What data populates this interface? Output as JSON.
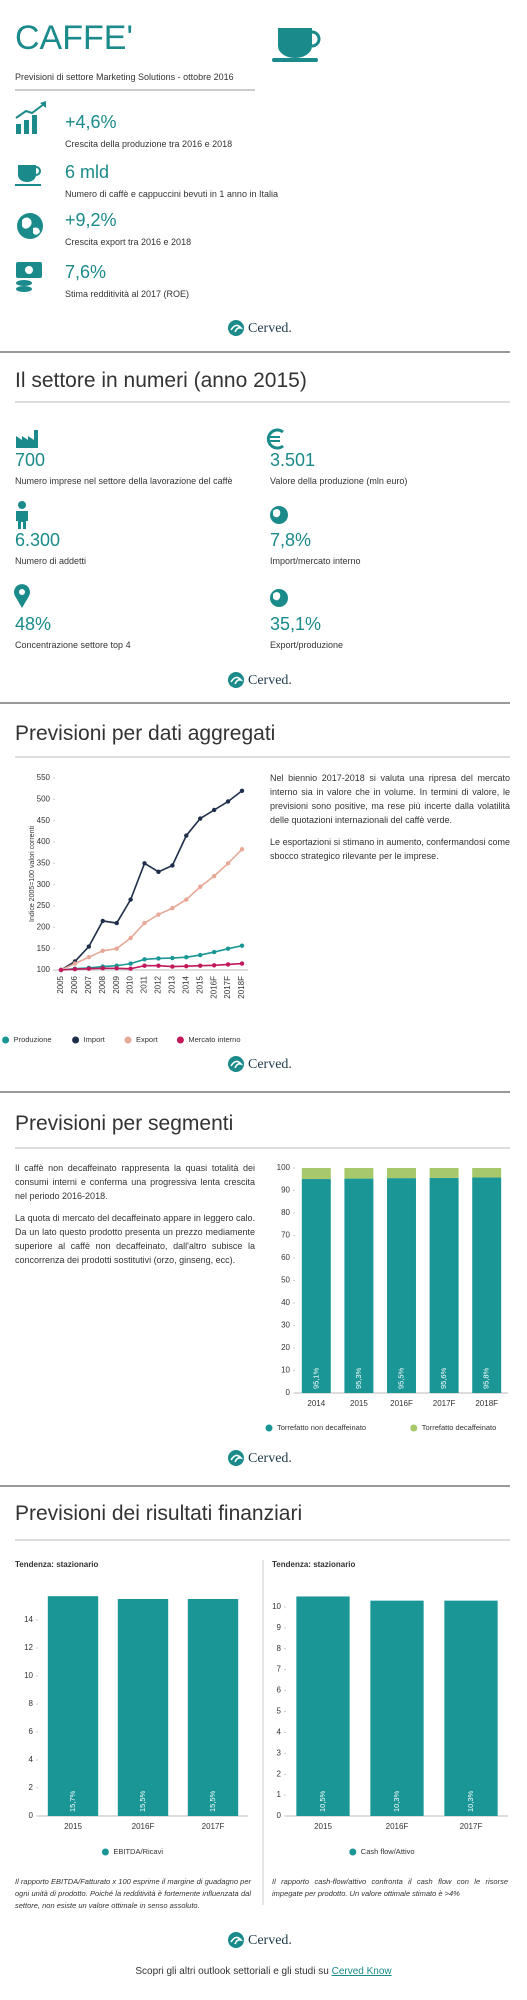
{
  "header": {
    "title": "CAFFE'",
    "subtitle": "Previsioni di settore Marketing Solutions - ottobre 2016"
  },
  "brand": "Cerved.",
  "highlights": [
    {
      "value": "+4,6%",
      "label": "Crescita della produzione tra 2016 e 2018"
    },
    {
      "value": "6 mld",
      "label": "Numero di caffè e cappuccini bevuti in 1 anno in Italia"
    },
    {
      "value": "+9,2%",
      "label": "Crescita export  tra 2016 e 2018"
    },
    {
      "value": "7,6%",
      "label": "Stima redditività al 2017 (ROE)"
    }
  ],
  "sections": [
    {
      "title": "Il settore in numeri (anno 2015)",
      "items": [
        {
          "value": "700",
          "label": "Numero imprese nel settore della lavorazione del caffè"
        },
        {
          "value": "3.501",
          "label": "Valore della produzione  (mln euro)"
        },
        {
          "value": "6.300",
          "label": "Numero di addetti"
        },
        {
          "value": "7,8%",
          "label": "Import/mercato interno"
        },
        {
          "value": "48%",
          "label": "Concentrazione settore top 4"
        },
        {
          "value": "35,1%",
          "label": "Export/produzione"
        }
      ]
    },
    {
      "title": "Previsioni per dati aggregati",
      "paragraphs": [
        "Nel biennio 2017-2018 si valuta una ripresa del mercato interno sia in valore che in volume. In termini di valore, le previsioni sono positive, ma rese più incerte dalla volatilità delle quotazioni internazionali del caffè verde.",
        "Le esportazioni si stimano in aumento, confermandosi come sbocco strategico rilevante per le imprese."
      ]
    },
    {
      "title": "Previsioni per segmenti",
      "paragraphs": [
        "Il caffè non decaffeinato rappresenta la quasi totalità dei consumi interni e conferma una progressiva lenta crescita nel periodo 2016-2018.",
        "La quota di mercato del decaffeinato appare in leggero calo. Da un lato questo prodotto presenta un prezzo mediamente superiore al caffè non decaffeinato, dall'altro subisce la concorrenza dei prodotti sostitutivi (orzo, ginseng, ecc)."
      ]
    },
    {
      "title": "Previsioni dei risultati finanziari",
      "notes": [
        "Il rapporto EBITDA/Fatturato x 100 esprime il margine di guadagno per ogni unità di prodotto. Poiché la redditività è fortemente influenzata dal settore, non esiste un valore ottimale in senso assoluto.",
        "Il rapporto cash-flow/attivo confronta il cash flow con le risorse impegate per prodotto. Un valore ottimale stimato è >4%"
      ]
    }
  ],
  "chart_data": [
    {
      "type": "line",
      "ylabel": "Indice 2005=100 valori correnti",
      "categories": [
        "2005",
        "2006",
        "2007",
        "2008",
        "2009",
        "2010",
        "2011",
        "2012",
        "2013",
        "2014",
        "2015",
        "2016F",
        "2017F",
        "2018F"
      ],
      "series": [
        {
          "name": "Produzione",
          "color": "#1a9696",
          "values": [
            100,
            103,
            105,
            108,
            110,
            115,
            125,
            127,
            128,
            130,
            135,
            142,
            150,
            157
          ]
        },
        {
          "name": "Import",
          "color": "#1f2e4a",
          "values": [
            100,
            120,
            155,
            215,
            210,
            265,
            350,
            330,
            345,
            415,
            455,
            475,
            495,
            520
          ]
        },
        {
          "name": "Export",
          "color": "#e8a898",
          "values": [
            100,
            115,
            130,
            145,
            150,
            175,
            210,
            230,
            245,
            265,
            295,
            320,
            350,
            383
          ]
        },
        {
          "name": "Mercato interno",
          "color": "#c0185a",
          "values": [
            100,
            102,
            103,
            104,
            104,
            103,
            110,
            110,
            108,
            109,
            110,
            111,
            113,
            115
          ]
        }
      ],
      "ylim": [
        100,
        550
      ],
      "yticks": [
        100,
        150,
        200,
        250,
        300,
        350,
        400,
        450,
        500,
        550
      ],
      "grid": false
    },
    {
      "type": "bar",
      "stacked": true,
      "categories": [
        "2014",
        "2015",
        "2016F",
        "2017F",
        "2018F"
      ],
      "series": [
        {
          "name": "Torrefatto non decaffeinato",
          "color": "#1a9696",
          "values": [
            95.1,
            95.3,
            95.5,
            95.6,
            95.8
          ],
          "value_labels": [
            "95,1%",
            "95,3%",
            "95,5%",
            "95,6%",
            "95,8%"
          ]
        },
        {
          "name": "Torrefatto decaffeinato",
          "color": "#a8c96b",
          "values": [
            4.9,
            4.7,
            4.5,
            4.4,
            4.2
          ]
        }
      ],
      "ylim": [
        0,
        100
      ],
      "yticks": [
        0,
        10,
        20,
        30,
        40,
        50,
        60,
        70,
        80,
        90,
        100
      ],
      "grid": false
    },
    {
      "type": "bar",
      "subtitle": "Tendenza:  stazionario",
      "categories": [
        "2015",
        "2016F",
        "2017F"
      ],
      "series": [
        {
          "name": "EBITDA/Ricavi",
          "color": "#1a9696",
          "values": [
            15.7,
            15.5,
            15.5
          ],
          "value_labels": [
            "15,7%",
            "15,5%",
            "15,5%"
          ]
        }
      ],
      "ylim": [
        0,
        16
      ],
      "yticks": [
        0,
        2,
        4,
        6,
        8,
        10,
        12,
        14
      ],
      "grid": false
    },
    {
      "type": "bar",
      "subtitle": "Tendenza:  stazionario",
      "categories": [
        "2015",
        "2016F",
        "2017F"
      ],
      "series": [
        {
          "name": "Cash flow/Attivo",
          "color": "#1a9696",
          "values": [
            10.5,
            10.3,
            10.3
          ],
          "value_labels": [
            "10,5%",
            "10,3%",
            "10,3%"
          ]
        }
      ],
      "ylim": [
        0,
        11
      ],
      "yticks": [
        0,
        1,
        2,
        3,
        4,
        5,
        6,
        7,
        8,
        9,
        10
      ],
      "grid": false
    }
  ],
  "footer": {
    "text": "Scopri gli altri outlook settoriali e gli studi su",
    "link": "Cerved Know"
  }
}
